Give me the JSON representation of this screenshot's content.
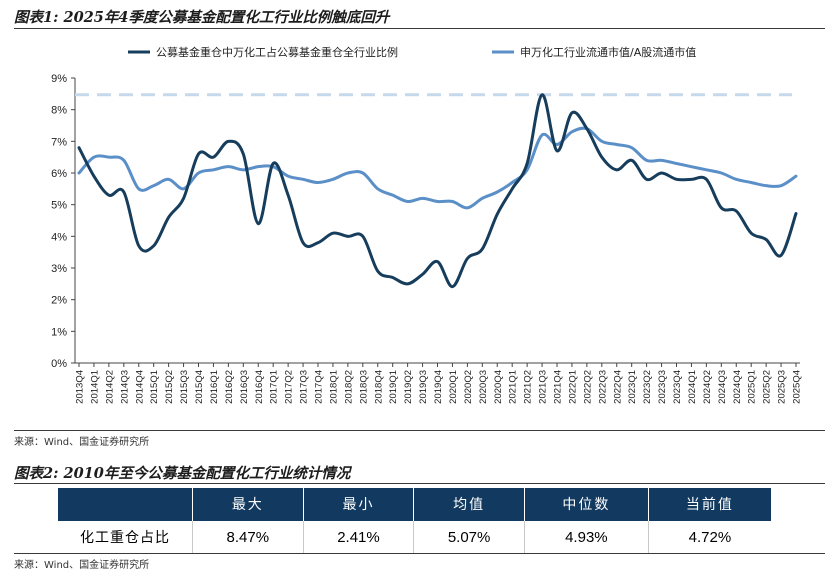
{
  "figure1": {
    "title": "图表1: 2025年4季度公募基金配置化工行业比例触底回升",
    "source": "来源：Wind、国金证券研究所"
  },
  "figure2": {
    "title": "图表2: 2010年至今公募基金配置化工行业统计情况",
    "source": "来源：Wind、国金证券研究所",
    "headers": [
      "",
      "最大",
      "最小",
      "均值",
      "中位数",
      "当前值"
    ],
    "row_label": "化工重仓占比",
    "row_values": [
      "8.47%",
      "2.41%",
      "5.07%",
      "4.93%",
      "4.72%"
    ]
  },
  "colors": {
    "series1": "#163d5c",
    "series2": "#5b8fc8",
    "max_line": "#c6d9ec",
    "table_header": "#123a60"
  },
  "chart_data": {
    "type": "line",
    "title": "2025年4季度公募基金配置化工行业比例触底回升",
    "xlabel": "",
    "ylabel": "",
    "ylim": [
      0,
      9
    ],
    "yticks": [
      "0%",
      "1%",
      "2%",
      "3%",
      "4%",
      "5%",
      "6%",
      "7%",
      "8%",
      "9%"
    ],
    "legend_position": "top",
    "grid": false,
    "categories": [
      "2013Q4",
      "2014Q1",
      "2014Q2",
      "2014Q3",
      "2014Q4",
      "2015Q1",
      "2015Q2",
      "2015Q3",
      "2015Q4",
      "2016Q1",
      "2016Q2",
      "2016Q3",
      "2016Q4",
      "2017Q1",
      "2017Q2",
      "2017Q3",
      "2017Q4",
      "2018Q1",
      "2018Q2",
      "2018Q3",
      "2018Q4",
      "2019Q1",
      "2019Q2",
      "2019Q3",
      "2019Q4",
      "2020Q1",
      "2020Q2",
      "2020Q3",
      "2020Q4",
      "2021Q1",
      "2021Q2",
      "2021Q3",
      "2021Q4",
      "2022Q1",
      "2022Q2",
      "2022Q3",
      "2022Q4",
      "2023Q1",
      "2023Q2",
      "2023Q3",
      "2023Q4",
      "2024Q1",
      "2024Q2",
      "2024Q3",
      "2024Q4",
      "2025Q1",
      "2025Q2",
      "2025Q3",
      "2025Q4"
    ],
    "series": [
      {
        "name": "公募基金重仓中万化工占公募基金重仓全行业比例",
        "values": [
          6.8,
          5.9,
          5.3,
          5.4,
          3.7,
          3.7,
          4.6,
          5.2,
          6.6,
          6.5,
          7.0,
          6.6,
          4.4,
          6.3,
          5.3,
          3.8,
          3.8,
          4.1,
          4.0,
          4.0,
          2.9,
          2.7,
          2.5,
          2.8,
          3.2,
          2.41,
          3.3,
          3.6,
          4.7,
          5.5,
          6.3,
          8.47,
          6.7,
          7.9,
          7.4,
          6.5,
          6.1,
          6.4,
          5.8,
          6.0,
          5.8,
          5.8,
          5.8,
          4.9,
          4.8,
          4.1,
          3.9,
          3.4,
          4.72
        ]
      },
      {
        "name": "申万化工行业流通市值/A股流通市值",
        "values": [
          6.0,
          6.5,
          6.5,
          6.4,
          5.5,
          5.6,
          5.8,
          5.5,
          6.0,
          6.1,
          6.2,
          6.1,
          6.2,
          6.2,
          5.9,
          5.8,
          5.7,
          5.8,
          6.0,
          6.0,
          5.5,
          5.3,
          5.1,
          5.2,
          5.1,
          5.1,
          4.9,
          5.2,
          5.4,
          5.7,
          6.1,
          7.2,
          6.9,
          7.3,
          7.4,
          7.0,
          6.9,
          6.8,
          6.4,
          6.4,
          6.3,
          6.2,
          6.1,
          6.0,
          5.8,
          5.7,
          5.6,
          5.6,
          5.9
        ]
      }
    ],
    "reference_lines": [
      {
        "value": 8.47,
        "style": "dashed"
      }
    ]
  }
}
